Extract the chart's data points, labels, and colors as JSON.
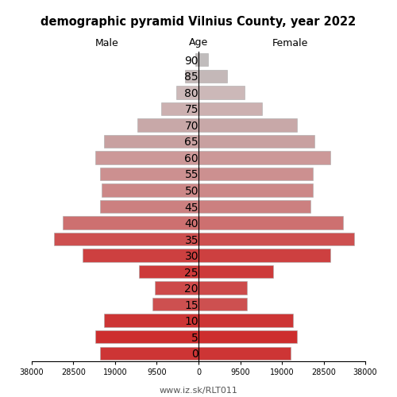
{
  "title": "demographic pyramid Vilnius County, year 2022",
  "xlabel_left": "Male",
  "xlabel_right": "Female",
  "xlabel_center": "Age",
  "footnote": "www.iz.sk/RLT011",
  "age_labels": [
    0,
    5,
    10,
    15,
    20,
    25,
    30,
    35,
    40,
    45,
    50,
    55,
    60,
    65,
    70,
    75,
    80,
    85,
    90
  ],
  "male": [
    22500,
    23500,
    21500,
    10500,
    10000,
    13500,
    26500,
    33000,
    31000,
    22500,
    22000,
    22500,
    23500,
    21500,
    14000,
    8500,
    5000,
    3000,
    800
  ],
  "female": [
    21000,
    22500,
    21500,
    11000,
    11000,
    17000,
    30000,
    35500,
    33000,
    25500,
    26000,
    26000,
    30000,
    26500,
    22500,
    14500,
    10500,
    6500,
    2200
  ],
  "xlim": 38000,
  "colors": {
    "0": "#cd3535",
    "5": "#cd2e2e",
    "10": "#cd3535",
    "15": "#cd5050",
    "20": "#cd4a4a",
    "25": "#cd3a3a",
    "30": "#cd4040",
    "35": "#cd5050",
    "40": "#cd7070",
    "45": "#cc8080",
    "50": "#cc8888",
    "55": "#cc9090",
    "60": "#cc9898",
    "65": "#c8a0a0",
    "70": "#c8a8a8",
    "75": "#ccb0b0",
    "80": "#ccb8b8",
    "85": "#c4b8b8",
    "90": "#c0bcbc"
  },
  "background_color": "#ffffff",
  "bar_edgecolor": "#aaaaaa",
  "bar_linewidth": 0.4
}
